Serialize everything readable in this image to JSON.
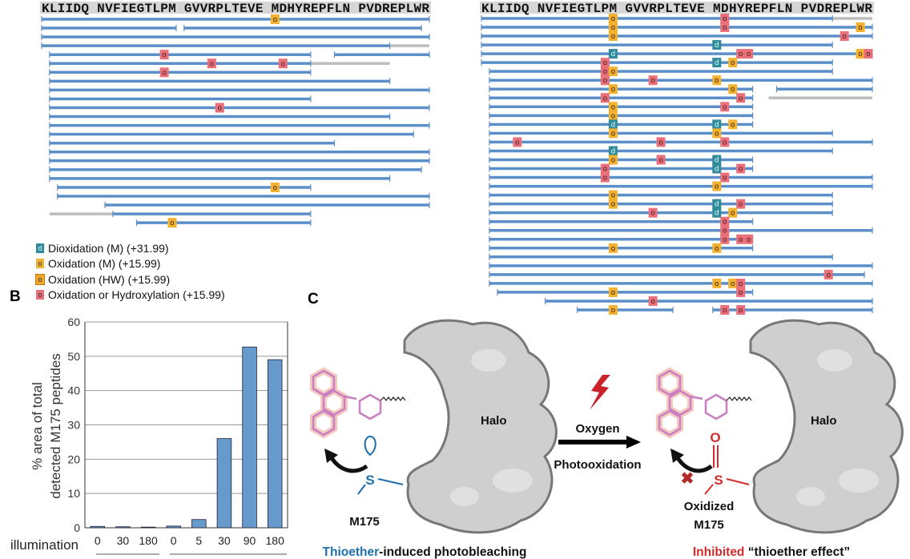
{
  "panel_a": {
    "sequence": "KLIIDQ NVFIEGTLPM GVVRPLTEVE MDHYREPFLN PVDREPLWR",
    "colors": {
      "peptide": "#5b8fc9",
      "uncovered": "#bdbdbd",
      "header_bg": "#d6d6d6"
    },
    "left": [
      {
        "s": [
          [
            0,
            49
          ]
        ],
        "g": [],
        "m": [
          [
            29,
            "om"
          ]
        ]
      },
      {
        "s": [
          [
            0,
            17
          ],
          [
            18,
            48
          ]
        ],
        "g": [],
        "m": []
      },
      {
        "s": [
          [
            0,
            49
          ]
        ],
        "g": [],
        "m": []
      },
      {
        "s": [
          [
            0,
            44
          ]
        ],
        "g": [
          [
            44,
            49
          ]
        ],
        "m": []
      },
      {
        "s": [
          [
            1,
            34
          ],
          [
            37,
            49
          ]
        ],
        "g": [],
        "m": [
          [
            15,
            "r"
          ]
        ]
      },
      {
        "s": [
          [
            1,
            34
          ]
        ],
        "g": [
          [
            34,
            44
          ]
        ],
        "m": [
          [
            21,
            "r"
          ],
          [
            30,
            "r"
          ]
        ]
      },
      {
        "s": [
          [
            1,
            34
          ]
        ],
        "g": [],
        "m": [
          [
            15,
            "r"
          ]
        ]
      },
      {
        "s": [
          [
            1,
            44
          ]
        ],
        "g": [],
        "m": []
      },
      {
        "s": [
          [
            1,
            49
          ]
        ],
        "g": [],
        "m": []
      },
      {
        "s": [
          [
            1,
            34
          ]
        ],
        "g": [],
        "m": []
      },
      {
        "s": [
          [
            1,
            49
          ]
        ],
        "g": [],
        "m": [
          [
            22,
            "r"
          ]
        ]
      },
      {
        "s": [
          [
            1,
            44
          ]
        ],
        "g": [],
        "m": []
      },
      {
        "s": [
          [
            1,
            49
          ]
        ],
        "g": [],
        "m": []
      },
      {
        "s": [
          [
            1,
            47
          ]
        ],
        "g": [],
        "m": []
      },
      {
        "s": [
          [
            1,
            37
          ]
        ],
        "g": [],
        "m": []
      },
      {
        "s": [
          [
            1,
            49
          ]
        ],
        "g": [],
        "m": []
      },
      {
        "s": [
          [
            1,
            49
          ]
        ],
        "g": [],
        "m": []
      },
      {
        "s": [
          [
            1,
            48
          ]
        ],
        "g": [],
        "m": []
      },
      {
        "s": [
          [
            1,
            44
          ]
        ],
        "g": [],
        "m": []
      },
      {
        "s": [
          [
            2,
            34
          ]
        ],
        "g": [],
        "m": [
          [
            29,
            "om"
          ]
        ]
      },
      {
        "s": [
          [
            2,
            49
          ]
        ],
        "g": [],
        "m": []
      },
      {
        "s": [
          [
            8,
            49
          ]
        ],
        "g": [],
        "m": []
      },
      {
        "s": [
          [
            9,
            34
          ]
        ],
        "g": [
          [
            1,
            9
          ]
        ],
        "m": []
      },
      {
        "s": [
          [
            12,
            34
          ]
        ],
        "g": [],
        "m": [
          [
            16,
            "om"
          ]
        ]
      }
    ],
    "right": [
      {
        "s": [
          [
            0,
            44
          ]
        ],
        "g": [
          [
            44,
            49
          ]
        ],
        "m": [
          [
            16,
            "om"
          ],
          [
            30,
            "r"
          ]
        ]
      },
      {
        "s": [
          [
            0,
            49
          ]
        ],
        "g": [],
        "m": [
          [
            16,
            "om"
          ],
          [
            30,
            "r"
          ],
          [
            47,
            "om"
          ]
        ]
      },
      {
        "s": [
          [
            0,
            49
          ]
        ],
        "g": [],
        "m": [
          [
            16,
            "om"
          ],
          [
            45,
            "r"
          ]
        ]
      },
      {
        "s": [
          [
            0,
            44
          ]
        ],
        "g": [],
        "m": [
          [
            29,
            "d"
          ]
        ]
      },
      {
        "s": [
          [
            0,
            49
          ]
        ],
        "g": [],
        "m": [
          [
            16,
            "d"
          ],
          [
            32,
            "r"
          ],
          [
            33,
            "r"
          ],
          [
            47,
            "om"
          ],
          [
            48,
            "r"
          ]
        ]
      },
      {
        "s": [
          [
            0,
            44
          ]
        ],
        "g": [],
        "m": [
          [
            15,
            "r"
          ],
          [
            29,
            "d"
          ],
          [
            31,
            "om"
          ]
        ]
      },
      {
        "s": [
          [
            1,
            44
          ]
        ],
        "g": [],
        "m": [
          [
            15,
            "r"
          ],
          [
            16,
            "om"
          ]
        ]
      },
      {
        "s": [
          [
            1,
            49
          ]
        ],
        "g": [],
        "m": [
          [
            15,
            "r"
          ],
          [
            21,
            "r"
          ],
          [
            29,
            "om"
          ]
        ]
      },
      {
        "s": [
          [
            1,
            34
          ],
          [
            37,
            49
          ]
        ],
        "g": [],
        "m": [
          [
            16,
            "om"
          ],
          [
            31,
            "om"
          ]
        ]
      },
      {
        "s": [
          [
            1,
            34
          ]
        ],
        "g": [
          [
            36,
            49
          ]
        ],
        "m": [
          [
            15,
            "r"
          ],
          [
            32,
            "r"
          ]
        ]
      },
      {
        "s": [
          [
            1,
            34
          ]
        ],
        "g": [],
        "m": [
          [
            16,
            "om"
          ],
          [
            30,
            "r"
          ]
        ]
      },
      {
        "s": [
          [
            1,
            34
          ]
        ],
        "g": [],
        "m": [
          [
            16,
            "om"
          ]
        ]
      },
      {
        "s": [
          [
            1,
            34
          ]
        ],
        "g": [],
        "m": [
          [
            16,
            "d"
          ],
          [
            29,
            "d"
          ],
          [
            31,
            "om"
          ]
        ]
      },
      {
        "s": [
          [
            1,
            44
          ]
        ],
        "g": [],
        "m": [
          [
            16,
            "om"
          ],
          [
            29,
            "om"
          ]
        ]
      },
      {
        "s": [
          [
            1,
            49
          ]
        ],
        "g": [],
        "m": [
          [
            4,
            "r"
          ],
          [
            22,
            "r"
          ],
          [
            30,
            "r"
          ]
        ]
      },
      {
        "s": [
          [
            1,
            44
          ]
        ],
        "g": [],
        "m": [
          [
            16,
            "d"
          ]
        ]
      },
      {
        "s": [
          [
            1,
            34
          ]
        ],
        "g": [],
        "m": [
          [
            16,
            "om"
          ],
          [
            22,
            "r"
          ],
          [
            29,
            "d"
          ]
        ]
      },
      {
        "s": [
          [
            1,
            34
          ]
        ],
        "g": [],
        "m": [
          [
            15,
            "r"
          ],
          [
            29,
            "d"
          ],
          [
            32,
            "r"
          ]
        ]
      },
      {
        "s": [
          [
            1,
            49
          ]
        ],
        "g": [],
        "m": [
          [
            15,
            "r"
          ],
          [
            30,
            "r"
          ]
        ]
      },
      {
        "s": [
          [
            1,
            49
          ]
        ],
        "g": [],
        "m": [
          [
            29,
            "om"
          ]
        ]
      },
      {
        "s": [
          [
            1,
            44
          ]
        ],
        "g": [],
        "m": [
          [
            16,
            "om"
          ]
        ]
      },
      {
        "s": [
          [
            1,
            44
          ]
        ],
        "g": [],
        "m": [
          [
            16,
            "om"
          ],
          [
            29,
            "d"
          ],
          [
            32,
            "r"
          ]
        ]
      },
      {
        "s": [
          [
            1,
            44
          ]
        ],
        "g": [],
        "m": [
          [
            21,
            "r"
          ],
          [
            29,
            "d"
          ],
          [
            31,
            "om"
          ]
        ]
      },
      {
        "s": [
          [
            1,
            34
          ]
        ],
        "g": [],
        "m": [
          [
            30,
            "r"
          ]
        ]
      },
      {
        "s": [
          [
            1,
            49
          ]
        ],
        "g": [],
        "m": [
          [
            30,
            "r"
          ]
        ]
      },
      {
        "s": [
          [
            1,
            34
          ]
        ],
        "g": [],
        "m": [
          [
            30,
            "r"
          ],
          [
            32,
            "r"
          ],
          [
            33,
            "r"
          ]
        ]
      },
      {
        "s": [
          [
            1,
            34
          ]
        ],
        "g": [],
        "m": [
          [
            16,
            "om"
          ],
          [
            29,
            "om"
          ]
        ]
      },
      {
        "s": [
          [
            1,
            44
          ]
        ],
        "g": [],
        "m": []
      },
      {
        "s": [
          [
            1,
            49
          ]
        ],
        "g": [],
        "m": []
      },
      {
        "s": [
          [
            1,
            48
          ]
        ],
        "g": [],
        "m": [
          [
            43,
            "r"
          ]
        ]
      },
      {
        "s": [
          [
            1,
            49
          ]
        ],
        "g": [],
        "m": [
          [
            29,
            "om"
          ],
          [
            31,
            "om"
          ],
          [
            32,
            "r"
          ]
        ]
      },
      {
        "s": [
          [
            2,
            34
          ]
        ],
        "g": [],
        "m": [
          [
            16,
            "om"
          ],
          [
            32,
            "r"
          ]
        ]
      },
      {
        "s": [
          [
            8,
            49
          ]
        ],
        "g": [],
        "m": [
          [
            21,
            "r"
          ]
        ]
      },
      {
        "s": [
          [
            12,
            24
          ],
          [
            29,
            49
          ]
        ],
        "g": [],
        "m": [
          [
            16,
            "om"
          ],
          [
            30,
            "r"
          ],
          [
            32,
            "r"
          ]
        ]
      }
    ]
  },
  "legend": [
    {
      "code": "d",
      "label": "Dioxidation (M) (+31.99)",
      "type": "d",
      "color": "#2f8a9a"
    },
    {
      "code": "o",
      "label": "Oxidation (M) (+15.99)",
      "type": "om",
      "color": "#f2b12e"
    },
    {
      "code": "o",
      "label": "Oxidation (HW) (+15.99)",
      "type": "hw",
      "color": "#f0a82a"
    },
    {
      "code": "o",
      "label": "Oxidation or Hydroxylation (+15.99)",
      "type": "r",
      "color": "#e9707b"
    }
  ],
  "panel_labels": {
    "b": "B",
    "c": "C"
  },
  "chart_data": {
    "type": "bar",
    "categories": [
      "0",
      "30",
      "180",
      "0",
      "5",
      "30",
      "90",
      "180"
    ],
    "values": [
      0.4,
      0.3,
      0.2,
      0.5,
      2.4,
      26,
      52.7,
      49
    ],
    "title": "",
    "xlabel": "illumination",
    "ylabel": [
      "% area of total",
      "detected M175 peptides"
    ],
    "ylim": [
      0,
      60
    ],
    "yticks": [
      "0",
      "10",
      "20",
      "30",
      "40",
      "50",
      "60"
    ],
    "grid": true,
    "bar_color": "#6699cc"
  },
  "panel_c": {
    "halo_left": "Halo",
    "halo_right": "Halo",
    "arrow_top": "Oxygen",
    "arrow_bottom": "Photooxidation",
    "sulfur": "S",
    "oxygen_atom": "O",
    "m175": "M175",
    "oxidized_1": "Oxidized",
    "oxidized_2": "M175",
    "caption_left_highlight": "Thioether",
    "caption_left_rest": "-induced photobleaching",
    "caption_right_highlight": "Inhibited",
    "caption_right_rest": " “thioether effect”",
    "colors": {
      "thioether": "#1f6fad",
      "inhibited": "#d22b2b",
      "dye": "#c97fc0",
      "lightning": "#c8232b",
      "halo": "#cfcfcf"
    }
  }
}
